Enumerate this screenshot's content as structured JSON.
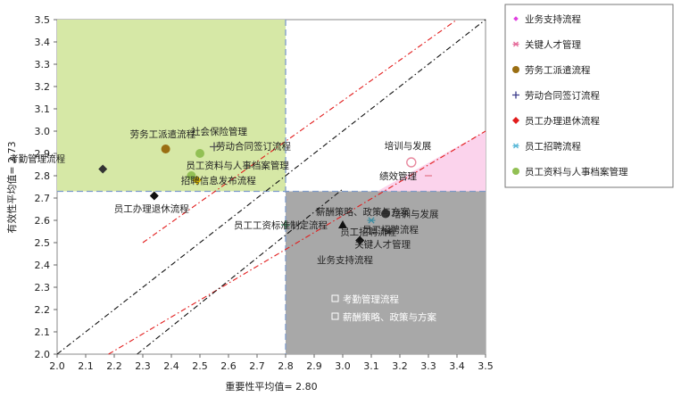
{
  "chart_data": {
    "type": "scatter",
    "xlabel": "重要性平均值= 2.80",
    "ylabel": "有效性平均值= 2.73",
    "xlim": [
      2.0,
      3.5
    ],
    "ylim": [
      2.0,
      3.5
    ],
    "x_ticks": [
      "2.0",
      "2.1",
      "2.2",
      "2.3",
      "2.4",
      "2.5",
      "2.6",
      "2.7",
      "2.8",
      "2.9",
      "3.0",
      "3.1",
      "3.2",
      "3.3",
      "3.4",
      "3.5"
    ],
    "y_ticks": [
      "2.0",
      "2.1",
      "2.2",
      "2.3",
      "2.4",
      "2.5",
      "2.6",
      "2.7",
      "2.8",
      "2.9",
      "3.0",
      "3.1",
      "3.2",
      "3.3",
      "3.4",
      "3.5"
    ],
    "mean_x": 2.8,
    "mean_y": 2.73,
    "grid": false,
    "legend_position": "right",
    "colors": {
      "quadrant_top_left": "#d6e8a6",
      "quadrant_bottom_right": "#a8a8a8",
      "triangle_pink": "#fbd3ec",
      "mean_line": "#7d9ac9",
      "diag_red": "#e21c1c",
      "diag_black": "#111111"
    },
    "points": [
      {
        "label": "考勤管理流程",
        "x": 2.16,
        "y": 2.83,
        "marker": "diamond",
        "color": "#333333"
      },
      {
        "label": "劳务工派遣流程",
        "x": 2.38,
        "y": 2.92,
        "marker": "circle",
        "color": "#9a6e12"
      },
      {
        "label": "社会保险管理",
        "x": 2.5,
        "y": 2.9,
        "marker": "circle",
        "color": "#92c054"
      },
      {
        "label": "劳动合同签订流程",
        "x": 2.55,
        "y": 2.93,
        "marker": "plus",
        "color": "#555555"
      },
      {
        "label": "员工资料与人事档案管理",
        "x": 2.47,
        "y": 2.8,
        "marker": "circle",
        "color": "#92c054"
      },
      {
        "label": "招聘信息发布流程",
        "x": 2.49,
        "y": 2.78,
        "marker": "diamond",
        "color": "#e6c200"
      },
      {
        "label": "培训与发展",
        "x": 3.24,
        "y": 2.86,
        "marker": "circle-open",
        "color": "#e8899f"
      },
      {
        "label": "绩效管理",
        "x": 3.3,
        "y": 2.8,
        "marker": "dash",
        "color": "#e8899f"
      },
      {
        "label": "员工办理退休流程",
        "x": 2.34,
        "y": 2.71,
        "marker": "diamond",
        "color": "#111111"
      },
      {
        "label": "员工工资标准制定流程",
        "x": 2.8,
        "y": 2.58,
        "marker": "plus",
        "color": "#2e7d4f"
      },
      {
        "label": "薪酬策略、政策与方案",
        "x": 3.0,
        "y": 2.58,
        "marker": "triangle",
        "color": "#111111"
      },
      {
        "label": "员工招聘流程",
        "x": 3.06,
        "y": 2.51,
        "marker": "diamond",
        "color": "#111111"
      },
      {
        "label": "培训与发展",
        "x": 3.15,
        "y": 2.63,
        "marker": "circle",
        "color": "#333333"
      },
      {
        "label": "员工招聘流程",
        "x": 3.1,
        "y": 2.6,
        "marker": "asterisk",
        "color": "#3a8ca0"
      },
      {
        "label": "关键人才管理",
        "x": 3.16,
        "y": 2.55,
        "marker": "asterisk",
        "color": "#333333"
      },
      {
        "label": "业务支持流程",
        "x": 3.05,
        "y": 2.44,
        "marker": "none",
        "color": "#111111"
      }
    ],
    "annotations": [
      {
        "text": "考勤管理流程",
        "x": 3.0,
        "y": 2.24,
        "color": "#ffffff"
      },
      {
        "text": "薪酬策略、政策与方案",
        "x": 3.0,
        "y": 2.16,
        "color": "#ffffff"
      }
    ],
    "legend": [
      {
        "name": "业务支持流程",
        "marker": "diamond-small",
        "color": "#e040e0"
      },
      {
        "name": "关键人才管理",
        "marker": "asterisk",
        "color": "#e56b9a"
      },
      {
        "name": "劳务工派遣流程",
        "marker": "circle",
        "color": "#9a6e12"
      },
      {
        "name": "劳动合同签订流程",
        "marker": "plus",
        "color": "#3a3a8a"
      },
      {
        "name": "员工办理退休流程",
        "marker": "diamond",
        "color": "#e21c1c"
      },
      {
        "name": "员工招聘流程",
        "marker": "asterisk",
        "color": "#59b8d8"
      },
      {
        "name": "员工资料与人事档案管理",
        "marker": "circle",
        "color": "#92c054"
      }
    ]
  }
}
